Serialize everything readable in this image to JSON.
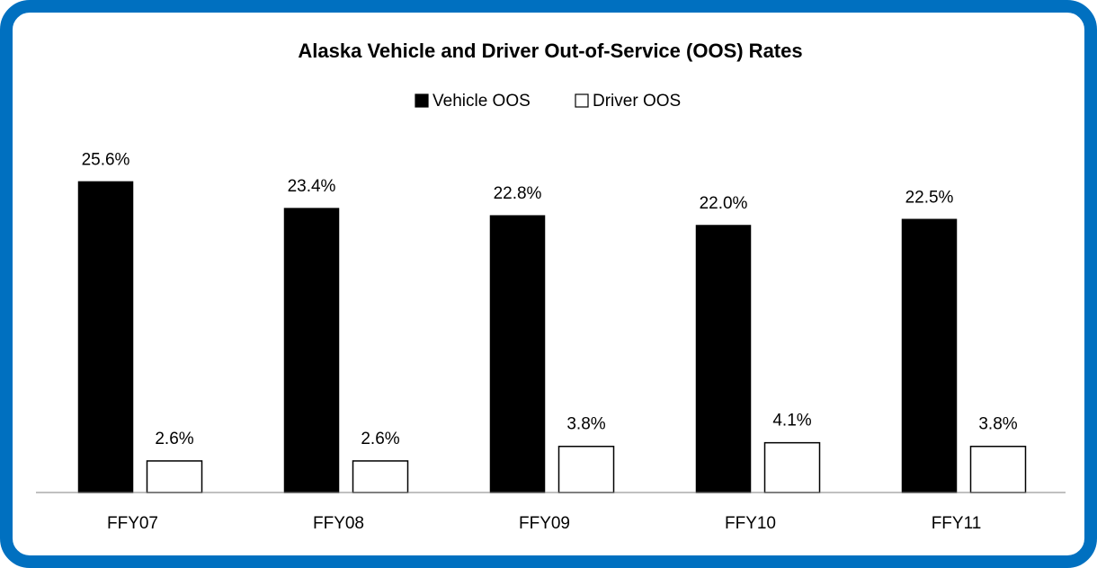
{
  "chart_data": {
    "type": "bar",
    "title": "Alaska Vehicle and Driver Out-of-Service (OOS) Rates",
    "categories": [
      "FFY07",
      "FFY08",
      "FFY09",
      "FFY10",
      "FFY11"
    ],
    "series": [
      {
        "name": "Vehicle OOS",
        "color": "#000000",
        "values": [
          25.6,
          23.4,
          22.8,
          22.0,
          22.5
        ],
        "value_labels": [
          "25.6%",
          "23.4%",
          "22.8%",
          "22.0%",
          "22.5%"
        ]
      },
      {
        "name": "Driver OOS",
        "color": "#ffffff",
        "values": [
          2.6,
          2.6,
          3.8,
          4.1,
          3.8
        ],
        "value_labels": [
          "2.6%",
          "2.6%",
          "3.8%",
          "4.1%",
          "3.8%"
        ]
      }
    ],
    "edgecolor": "#000000",
    "ylim": [
      0,
      30
    ],
    "legend": "top"
  }
}
